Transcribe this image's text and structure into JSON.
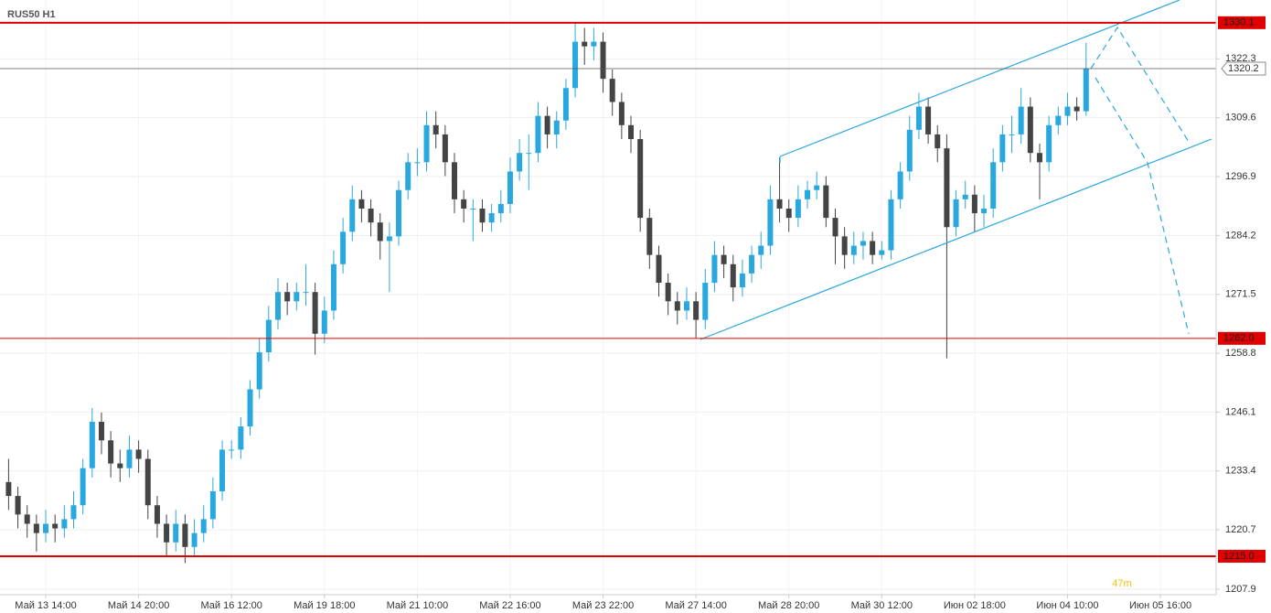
{
  "chart_data": {
    "type": "candlestick",
    "title": "RUS50 H1",
    "annotation": "47m",
    "xlim": [
      -0.925,
      130
    ],
    "ylim": [
      1206.7,
      1335
    ],
    "yticks": [
      1207.9,
      1220.7,
      1233.4,
      1246.1,
      1258.8,
      1271.5,
      1284.2,
      1296.9,
      1309.6,
      1322.3
    ],
    "xticks": [
      {
        "value": 4,
        "label": "Май 13 14:00"
      },
      {
        "value": 14,
        "label": "Май 14 20:00"
      },
      {
        "value": 24,
        "label": "Май 16 12:00"
      },
      {
        "value": 34,
        "label": "Май 19 18:00"
      },
      {
        "value": 44,
        "label": "Май 21 10:00"
      },
      {
        "value": 54,
        "label": "Май 22 16:00"
      },
      {
        "value": 64,
        "label": "Май 23 22:00"
      },
      {
        "value": 74,
        "label": "Май 27 14:00"
      },
      {
        "value": 84,
        "label": "Май 28 20:00"
      },
      {
        "value": 94,
        "label": "Май 30 12:00"
      },
      {
        "value": 104,
        "label": "Июн 02 18:00"
      },
      {
        "value": 114,
        "label": "Июн 04 10:00"
      },
      {
        "value": 124,
        "label": "Июн 05 16:00"
      }
    ],
    "grid": true,
    "up_color": "#29a8e0",
    "down_color": "#444444",
    "level_color": "#e00000",
    "last_color": "#555555",
    "levels": [
      {
        "value": 1330.1,
        "label": "1330.1",
        "width": 2
      },
      {
        "value": 1262,
        "label": "1262.0",
        "width": 1
      },
      {
        "value": 1215,
        "label": "1215.0",
        "width": 2
      }
    ],
    "open": [
      1231,
      1228,
      1224,
      1222,
      1220,
      1222,
      1221,
      1223,
      1226,
      1234,
      1244,
      1240,
      1235,
      1234,
      1238,
      1236,
      1226,
      1222,
      1218,
      1222,
      1217,
      1220,
      1223,
      1229,
      1238,
      1238,
      1243,
      1251,
      1259,
      1266,
      1272,
      1270,
      1272,
      1272,
      1263,
      1268,
      1278,
      1285,
      1292,
      1290,
      1287,
      1283,
      1284,
      1294,
      1300,
      1300,
      1308,
      1306,
      1300,
      1292,
      1290,
      1290,
      1287,
      1289,
      1291,
      1298,
      1302,
      1302,
      1310,
      1306,
      1309,
      1316,
      1326,
      1325,
      1326,
      1318,
      1313,
      1308,
      1305,
      1288,
      1280,
      1274,
      1270,
      1268,
      1270,
      1266,
      1274,
      1280,
      1278,
      1273,
      1276,
      1280,
      1282,
      1292,
      1290,
      1288,
      1292,
      1294,
      1295,
      1288,
      1284,
      1280,
      1282,
      1283,
      1280,
      1281,
      1292,
      1298,
      1307,
      1312,
      1306,
      1303,
      1286,
      1292,
      1293,
      1289,
      1290,
      1300,
      1306,
      1306,
      1312,
      1302,
      1300,
      1308,
      1310,
      1312,
      1311
    ],
    "high": [
      1236,
      1230,
      1226,
      1224,
      1225,
      1224,
      1226,
      1229,
      1236,
      1247,
      1246,
      1242,
      1238,
      1241,
      1240,
      1238,
      1228,
      1224,
      1225,
      1224,
      1223,
      1226,
      1232,
      1240,
      1240,
      1245,
      1253,
      1262,
      1269,
      1275,
      1274,
      1274,
      1278,
      1274,
      1271,
      1281,
      1288,
      1295,
      1294,
      1292,
      1289,
      1287,
      1296,
      1302,
      1303,
      1311,
      1311,
      1308,
      1302,
      1294,
      1292,
      1292,
      1291,
      1294,
      1301,
      1305,
      1306,
      1313,
      1312,
      1311,
      1318,
      1330.1,
      1329,
      1329,
      1328,
      1320,
      1315,
      1310,
      1307,
      1290,
      1282,
      1276,
      1272,
      1273,
      1272,
      1277,
      1283,
      1282,
      1280,
      1279,
      1282,
      1285,
      1295,
      1301,
      1292,
      1295,
      1296,
      1298,
      1297,
      1290,
      1286,
      1285,
      1285,
      1285,
      1283,
      1294,
      1300,
      1310,
      1315,
      1314,
      1308,
      1306,
      1294,
      1296,
      1295,
      1293,
      1303,
      1308,
      1310,
      1316,
      1314,
      1304,
      1310,
      1312,
      1315,
      1314,
      1325.8
    ],
    "low": [
      1225,
      1221,
      1219,
      1216,
      1218,
      1218,
      1219,
      1221,
      1224,
      1232,
      1237,
      1232,
      1231,
      1232,
      1233,
      1223,
      1219,
      1215,
      1216,
      1213.5,
      1215,
      1218,
      1221,
      1227,
      1236,
      1236,
      1241,
      1249,
      1257,
      1264,
      1267,
      1268,
      1269,
      1258.5,
      1261,
      1266,
      1276,
      1283,
      1287,
      1284,
      1279,
      1272,
      1282,
      1292,
      1297,
      1298,
      1303,
      1297,
      1289,
      1287,
      1283,
      1285,
      1285,
      1287,
      1289,
      1296,
      1294,
      1300,
      1303,
      1303,
      1307,
      1314,
      1321,
      1322,
      1315,
      1310,
      1305,
      1302,
      1285,
      1277,
      1271,
      1267,
      1265,
      1266,
      1262,
      1264,
      1272,
      1275,
      1270,
      1271,
      1274,
      1277,
      1280,
      1287,
      1285,
      1286,
      1290,
      1292,
      1286,
      1278,
      1277,
      1278,
      1279,
      1278,
      1279,
      1279,
      1290,
      1296,
      1305,
      1304,
      1300,
      1257.7,
      1284,
      1290,
      1285,
      1286,
      1288,
      1298,
      1302,
      1304,
      1300,
      1292,
      1298,
      1306,
      1308,
      1309,
      1310
    ],
    "close": [
      1228,
      1224,
      1222,
      1220,
      1222,
      1221,
      1223,
      1226,
      1234,
      1244,
      1240,
      1235,
      1234,
      1238,
      1236,
      1226,
      1222,
      1218,
      1222,
      1217,
      1220,
      1223,
      1229,
      1238,
      1238,
      1243,
      1251,
      1259,
      1266,
      1272,
      1270,
      1272,
      1272,
      1263,
      1268,
      1278,
      1285,
      1292,
      1290,
      1287,
      1283,
      1284,
      1294,
      1300,
      1300,
      1308,
      1306,
      1300,
      1292,
      1290,
      1290,
      1287,
      1289,
      1291,
      1298,
      1302,
      1302,
      1310,
      1306,
      1309,
      1316,
      1326,
      1325,
      1326,
      1318,
      1313,
      1308,
      1305,
      1288,
      1280,
      1274,
      1270,
      1268,
      1270,
      1266,
      1274,
      1280,
      1278,
      1273,
      1276,
      1280,
      1282,
      1292,
      1290,
      1288,
      1292,
      1294,
      1295,
      1288,
      1284,
      1280,
      1282,
      1283,
      1280,
      1281,
      1292,
      1298,
      1307,
      1312,
      1306,
      1303,
      1286,
      1292,
      1293,
      1289,
      1290,
      1300,
      1306,
      1306,
      1312,
      1302,
      1300,
      1308,
      1310,
      1312,
      1311,
      1320.2
    ]
  }
}
